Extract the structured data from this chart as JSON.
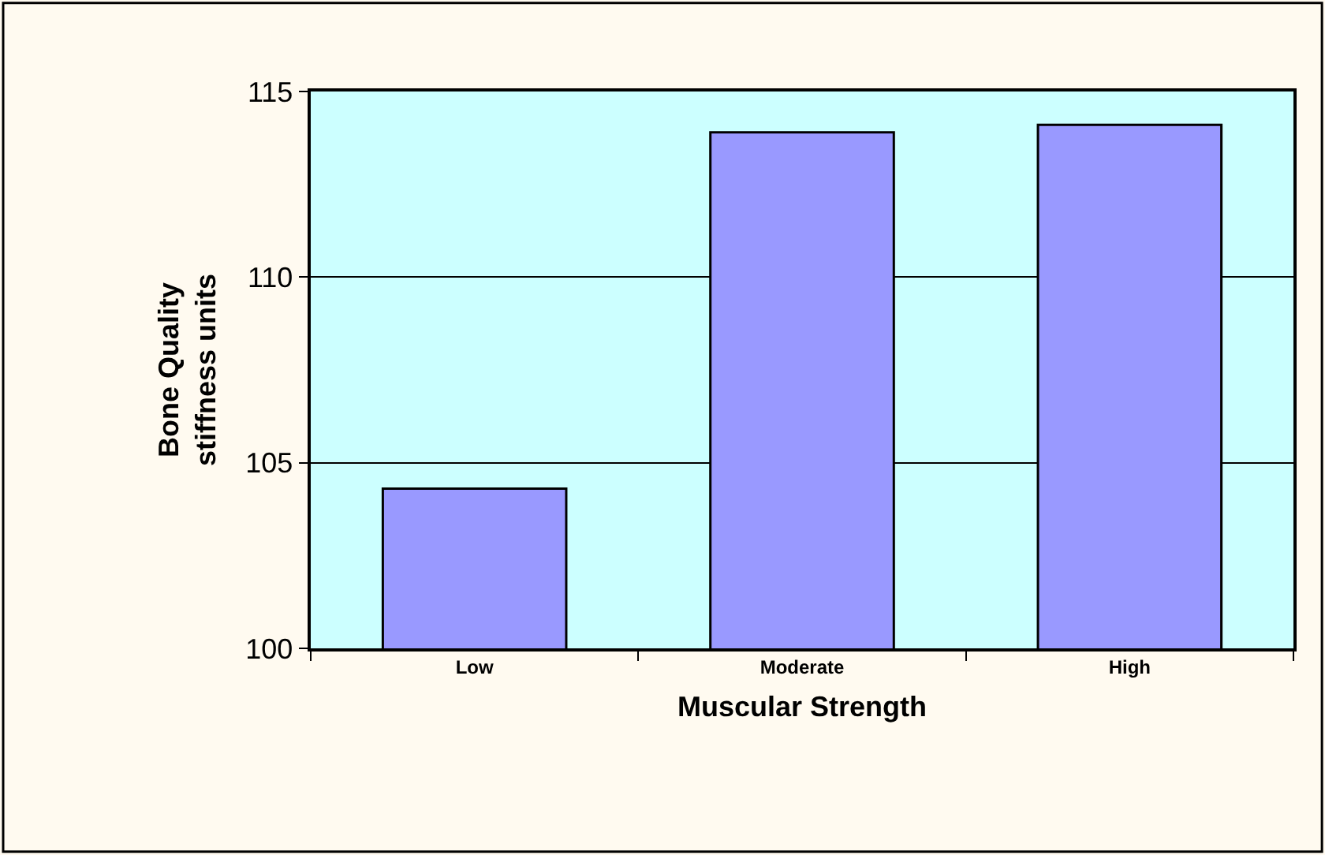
{
  "chart_data": {
    "type": "bar",
    "xlabel": "Muscular Strength",
    "ylabel": "Bone Quality\nstiffness units",
    "categories": [
      "Low",
      "Moderate",
      "High"
    ],
    "values": [
      104.3,
      113.9,
      114.1
    ],
    "color": "#9999ff",
    "ylim": [
      100,
      115
    ],
    "yticks": [
      100,
      105,
      110,
      115
    ],
    "grid": "y",
    "legend": false
  }
}
